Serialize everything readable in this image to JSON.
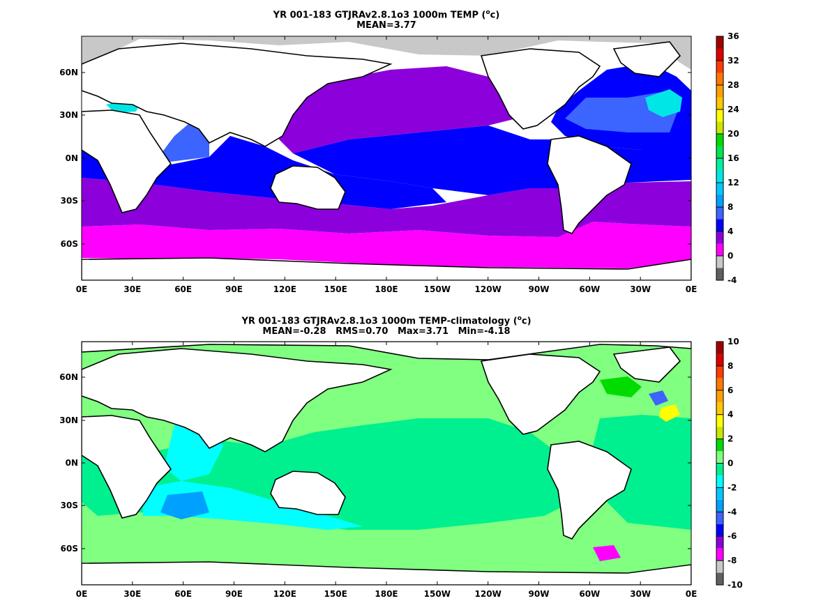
{
  "chart_data": [
    {
      "type": "heatmap",
      "title_prefix": "YR 001-183 GTJRAv2.8.1o3 1000m TEMP (",
      "title_unit": "c)",
      "subtitle": "MEAN=3.77",
      "unit": "oC",
      "x_ticks": [
        "0E",
        "30E",
        "60E",
        "90E",
        "120E",
        "150E",
        "180E",
        "150W",
        "120W",
        "90W",
        "60W",
        "30W",
        "0E"
      ],
      "y_ticks": [
        "60N",
        "30N",
        "0N",
        "30S",
        "60S"
      ],
      "colorbar": {
        "ticks": [
          "36",
          "32",
          "28",
          "24",
          "20",
          "16",
          "12",
          "8",
          "4",
          "0",
          "-4"
        ],
        "bins": [
          {
            "from": -4,
            "to": 0,
            "color": "#606060"
          },
          {
            "from": -2,
            "to": 0,
            "color": "#c8c8c8"
          },
          {
            "from": 0,
            "to": 2,
            "color": "#ff00ff"
          },
          {
            "from": 2,
            "to": 4,
            "color": "#8c00dc"
          },
          {
            "from": 4,
            "to": 6,
            "color": "#0000ff"
          },
          {
            "from": 6,
            "to": 8,
            "color": "#3c64ff"
          },
          {
            "from": 8,
            "to": 10,
            "color": "#00a0ff"
          },
          {
            "from": 10,
            "to": 12,
            "color": "#00c8ff"
          },
          {
            "from": 12,
            "to": 14,
            "color": "#00e6e6"
          },
          {
            "from": 14,
            "to": 16,
            "color": "#00f0a0"
          },
          {
            "from": 16,
            "to": 18,
            "color": "#00e650"
          },
          {
            "from": 18,
            "to": 20,
            "color": "#00dc00"
          },
          {
            "from": 20,
            "to": 22,
            "color": "#c8e600"
          },
          {
            "from": 22,
            "to": 24,
            "color": "#ffff00"
          },
          {
            "from": 24,
            "to": 26,
            "color": "#ffc800"
          },
          {
            "from": 26,
            "to": 28,
            "color": "#ffa000"
          },
          {
            "from": 28,
            "to": 30,
            "color": "#ff7800"
          },
          {
            "from": 30,
            "to": 32,
            "color": "#ff3c00"
          },
          {
            "from": 32,
            "to": 34,
            "color": "#dc0000"
          },
          {
            "from": 34,
            "to": 36,
            "color": "#a00000"
          }
        ]
      },
      "land_color": "#ffffff",
      "ice_color": "#c8c8c8"
    },
    {
      "type": "heatmap",
      "title_prefix": "YR 001-183 GTJRAv2.8.1o3 1000m TEMP-climatology (",
      "title_unit": "c)",
      "subtitle": "MEAN=-0.28   RMS=0.70   Max=3.71   Min=-4.18",
      "unit": "oC",
      "x_ticks": [
        "0E",
        "30E",
        "60E",
        "90E",
        "120E",
        "150E",
        "180E",
        "150W",
        "120W",
        "90W",
        "60W",
        "30W",
        "0E"
      ],
      "y_ticks": [
        "60N",
        "30N",
        "0N",
        "30S",
        "60S"
      ],
      "colorbar": {
        "ticks": [
          "10",
          "8",
          "6",
          "4",
          "2",
          "0",
          "-2",
          "-4",
          "-6",
          "-8",
          "-10"
        ],
        "bins": [
          {
            "from": -10,
            "to": -9,
            "color": "#606060"
          },
          {
            "from": -9,
            "to": -8,
            "color": "#c8c8c8"
          },
          {
            "from": -8,
            "to": -7,
            "color": "#ff00ff"
          },
          {
            "from": -7,
            "to": -6,
            "color": "#8c00dc"
          },
          {
            "from": -6,
            "to": -5,
            "color": "#0000ff"
          },
          {
            "from": -5,
            "to": -4,
            "color": "#3c64ff"
          },
          {
            "from": -4,
            "to": -3,
            "color": "#00a0ff"
          },
          {
            "from": -3,
            "to": -2,
            "color": "#00c8ff"
          },
          {
            "from": -2,
            "to": -1,
            "color": "#00ffff"
          },
          {
            "from": -1,
            "to": 0,
            "color": "#00f090"
          },
          {
            "from": 0,
            "to": 1,
            "color": "#80ff80"
          },
          {
            "from": 1,
            "to": 2,
            "color": "#00dc00"
          },
          {
            "from": 2,
            "to": 3,
            "color": "#c8e600"
          },
          {
            "from": 3,
            "to": 4,
            "color": "#ffff00"
          },
          {
            "from": 4,
            "to": 5,
            "color": "#ffc800"
          },
          {
            "from": 5,
            "to": 6,
            "color": "#ffa000"
          },
          {
            "from": 6,
            "to": 7,
            "color": "#ff7800"
          },
          {
            "from": 7,
            "to": 8,
            "color": "#ff3c00"
          },
          {
            "from": 8,
            "to": 9,
            "color": "#dc0000"
          },
          {
            "from": 9,
            "to": 10,
            "color": "#a00000"
          }
        ]
      },
      "land_color": "#ffffff"
    }
  ]
}
